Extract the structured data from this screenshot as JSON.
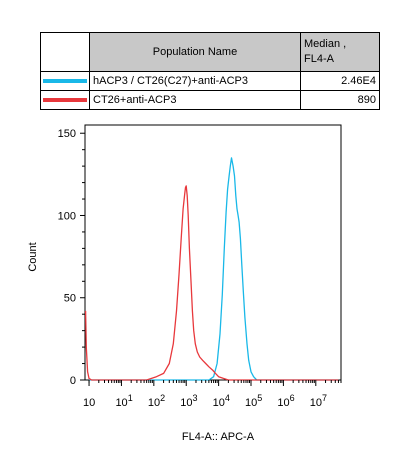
{
  "legend": {
    "header_name": "Population Name",
    "header_median_line1": "Median ,",
    "header_median_line2": "FL4-A",
    "rows": [
      {
        "name": "hACP3 / CT26(C27)+anti-ACP3",
        "median": "2.46E4",
        "color": "#19b8e8"
      },
      {
        "name": "CT26+anti-ACP3",
        "median": "890",
        "color": "#e8383c"
      }
    ]
  },
  "chart_data": {
    "type": "line",
    "xlabel": "FL4-A:: APC-A",
    "ylabel": "Count",
    "x_scale": "log",
    "xlim": [
      0.75,
      60000000
    ],
    "ylim": [
      0,
      155
    ],
    "x_tick_labels": [
      {
        "value": 1,
        "base": "10",
        "exp": ""
      },
      {
        "value": 10,
        "base": "10",
        "exp": "1"
      },
      {
        "value": 100,
        "base": "10",
        "exp": "2"
      },
      {
        "value": 1000,
        "base": "10",
        "exp": "3"
      },
      {
        "value": 10000,
        "base": "10",
        "exp": "4"
      },
      {
        "value": 100000,
        "base": "10",
        "exp": "5"
      },
      {
        "value": 1000000,
        "base": "10",
        "exp": "6"
      },
      {
        "value": 10000000,
        "base": "10",
        "exp": "7"
      }
    ],
    "y_ticks": [
      0,
      50,
      100,
      150
    ],
    "series": [
      {
        "name": "hACP3 / CT26(C27)+anti-ACP3",
        "color": "#19b8e8",
        "points": [
          [
            1,
            0
          ],
          [
            5000,
            0
          ],
          [
            7000,
            2
          ],
          [
            9000,
            10
          ],
          [
            11000,
            28
          ],
          [
            13000,
            52
          ],
          [
            15000,
            80
          ],
          [
            17000,
            102
          ],
          [
            19000,
            116
          ],
          [
            21000,
            124
          ],
          [
            23000,
            130
          ],
          [
            25000,
            135
          ],
          [
            28000,
            130
          ],
          [
            31000,
            124
          ],
          [
            34000,
            112
          ],
          [
            37000,
            104
          ],
          [
            40000,
            100
          ],
          [
            43000,
            96
          ],
          [
            47000,
            86
          ],
          [
            52000,
            70
          ],
          [
            58000,
            54
          ],
          [
            65000,
            38
          ],
          [
            75000,
            22
          ],
          [
            85000,
            12
          ],
          [
            100000,
            5
          ],
          [
            120000,
            2
          ],
          [
            150000,
            0
          ],
          [
            50000000,
            0
          ]
        ]
      },
      {
        "name": "CT26+anti-ACP3",
        "color": "#e8383c",
        "points": [
          [
            0.78,
            42
          ],
          [
            0.82,
            20
          ],
          [
            0.9,
            5
          ],
          [
            1.0,
            1
          ],
          [
            1.2,
            0
          ],
          [
            60,
            0
          ],
          [
            120,
            2
          ],
          [
            200,
            4
          ],
          [
            300,
            10
          ],
          [
            400,
            22
          ],
          [
            500,
            42
          ],
          [
            600,
            64
          ],
          [
            700,
            86
          ],
          [
            800,
            104
          ],
          [
            900,
            113
          ],
          [
            950,
            117
          ],
          [
            1000,
            118
          ],
          [
            1070,
            112
          ],
          [
            1150,
            100
          ],
          [
            1250,
            80
          ],
          [
            1400,
            60
          ],
          [
            1550,
            42
          ],
          [
            1700,
            30
          ],
          [
            1900,
            22
          ],
          [
            2200,
            17
          ],
          [
            2600,
            14
          ],
          [
            3200,
            12
          ],
          [
            4000,
            10
          ],
          [
            5000,
            8
          ],
          [
            6500,
            6
          ],
          [
            8000,
            4
          ],
          [
            10000,
            2
          ],
          [
            14000,
            1
          ],
          [
            20000,
            0
          ],
          [
            50000000,
            0
          ]
        ]
      }
    ]
  }
}
